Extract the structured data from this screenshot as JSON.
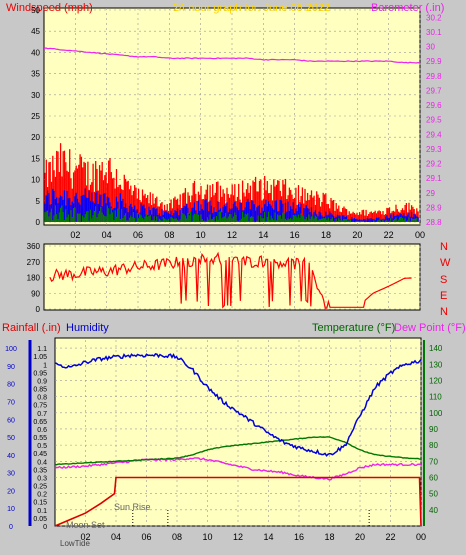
{
  "header": {
    "title": "24 hour graph for:  June 08 2022",
    "wind_label": "Windspeed (mph)",
    "baro_label": "Barometer (.in)"
  },
  "mid_panel": {
    "compass": [
      "N",
      "W",
      "S",
      "E",
      "N"
    ]
  },
  "bottom_panel": {
    "rain_label": "Rainfall (.in)",
    "hum_label": "Humidity",
    "temp_label": "Temperature (°F)",
    "dew_label": "Dew Point (°F)",
    "sun_rise_label": "Sun Rise",
    "moon_set_label": "Moon Set",
    "low_tide_label": "LowTide"
  },
  "colors": {
    "plot_bg": "#ffffc0",
    "panel_bg": "#c8c8c8",
    "wind": "#ff0000",
    "gust_blue": "#0000ff",
    "avg_green": "#008000",
    "baro": "#ee22ee",
    "humidity": "#0000dd",
    "temperature": "#007700",
    "dewpoint": "#ee22ee",
    "rain": "#dd0000",
    "title": "#ffd700"
  },
  "chart_data": [
    {
      "type": "line",
      "title": "24 hour graph for:  June 08 2022",
      "x_ticks": [
        "02",
        "04",
        "06",
        "08",
        "10",
        "12",
        "14",
        "16",
        "18",
        "20",
        "22",
        "00"
      ],
      "xlim_hours": [
        0,
        24
      ],
      "ylabel_left": "Windspeed (mph)",
      "ylim_left": [
        0,
        50
      ],
      "yticks_left": [
        0,
        5,
        10,
        15,
        20,
        25,
        30,
        35,
        40,
        45,
        50
      ],
      "ylabel_right": "Barometer (.in)",
      "ylim_right": [
        28.8,
        30.25
      ],
      "yticks_right": [
        "28.8",
        "28.9",
        "29",
        "29.1",
        "29.2",
        "29.3",
        "29.4",
        "29.5",
        "29.6",
        "29.7",
        "29.8",
        "29.9",
        "30",
        "30.1",
        "30.2"
      ],
      "series": [
        {
          "name": "Windspeed (mph)",
          "hours": [
            0,
            1,
            2,
            3,
            4,
            5,
            6,
            7,
            8,
            9,
            10,
            11,
            12,
            13,
            14,
            15,
            16,
            17,
            18,
            19,
            20,
            21,
            22,
            23,
            24
          ],
          "gust": [
            14,
            19,
            17,
            15,
            18,
            13,
            8,
            7,
            5,
            8,
            11,
            10,
            9,
            11,
            11,
            11,
            9,
            8,
            7,
            4,
            3,
            3,
            4,
            5,
            4
          ],
          "typical": [
            8,
            10,
            9,
            8,
            9,
            7,
            5,
            4,
            3,
            5,
            6,
            6,
            5,
            6,
            6,
            6,
            5,
            4,
            3,
            2,
            1,
            1,
            2,
            3,
            2
          ]
        },
        {
          "name": "Barometer (.in)",
          "hours": [
            0,
            1,
            2,
            3,
            4,
            5,
            6,
            7,
            8,
            9,
            10,
            11,
            12,
            13,
            14,
            15,
            16,
            17,
            18,
            19,
            20,
            21,
            22,
            23,
            24
          ],
          "values": [
            29.99,
            29.98,
            29.97,
            29.96,
            29.95,
            29.94,
            29.93,
            29.93,
            29.92,
            29.92,
            29.92,
            29.92,
            29.92,
            29.92,
            29.91,
            29.91,
            29.91,
            29.9,
            29.9,
            29.9,
            29.9,
            29.9,
            29.9,
            29.89,
            29.89
          ]
        }
      ]
    },
    {
      "type": "line",
      "ylabel": "Wind direction",
      "ylim": [
        0,
        360
      ],
      "yticks": [
        0,
        90,
        180,
        270,
        360
      ],
      "series": [
        {
          "name": "Wind direction",
          "hours": [
            0,
            1,
            2,
            3,
            4,
            5,
            6,
            7,
            8,
            9,
            10,
            11,
            12,
            13,
            14,
            15,
            16,
            17,
            18,
            19,
            20,
            21,
            22,
            23,
            24
          ],
          "values": [
            185,
            195,
            200,
            210,
            215,
            230,
            240,
            250,
            260,
            270,
            280,
            290,
            280,
            270,
            275,
            270,
            260,
            250,
            10,
            10,
            10,
            90,
            130,
            175,
            180
          ]
        }
      ]
    },
    {
      "type": "line",
      "ylabel_left": "Rainfall (.in)",
      "ylim_left": [
        0,
        1.15
      ],
      "yticks_left": [
        "0",
        "0.05",
        "0.1",
        "0.15",
        "0.2",
        "0.25",
        "0.3",
        "0.35",
        "0.4",
        "0.45",
        "0.5",
        "0.55",
        "0.6",
        "0.65",
        "0.7",
        "0.75",
        "0.8",
        "0.85",
        "0.9",
        "0.95",
        "1",
        "1.05",
        "1.1"
      ],
      "yticks_humidity": [
        "0",
        "10",
        "20",
        "30",
        "40",
        "50",
        "60",
        "70",
        "80",
        "90",
        "100"
      ],
      "ylabel_right": "Temperature (°F)",
      "ylim_right": [
        30,
        145
      ],
      "yticks_right": [
        "40",
        "50",
        "60",
        "70",
        "80",
        "90",
        "100",
        "110",
        "120",
        "130",
        "140"
      ],
      "series": [
        {
          "name": "Humidity",
          "hours": [
            0,
            1,
            2,
            3,
            4,
            5,
            6,
            7,
            8,
            9,
            10,
            11,
            12,
            13,
            14,
            15,
            16,
            17,
            18,
            19,
            20,
            21,
            22,
            23,
            24
          ],
          "values": [
            91,
            89,
            92,
            94,
            95,
            96,
            96,
            96,
            95,
            88,
            78,
            70,
            64,
            58,
            52,
            47,
            44,
            42,
            40,
            45,
            62,
            78,
            86,
            91,
            93
          ]
        },
        {
          "name": "Temperature (°F)",
          "hours": [
            0,
            1,
            2,
            3,
            4,
            5,
            6,
            7,
            8,
            9,
            10,
            11,
            12,
            13,
            14,
            15,
            16,
            17,
            18,
            19,
            20,
            21,
            22,
            23,
            24
          ],
          "values": [
            68,
            68.5,
            69,
            69.5,
            70,
            70.5,
            71,
            71.5,
            72,
            74,
            77,
            79,
            80,
            81,
            82,
            83,
            84,
            85,
            85,
            82,
            77,
            74,
            73,
            72,
            71.5
          ]
        },
        {
          "name": "Dew Point (°F)",
          "hours": [
            0,
            1,
            2,
            3,
            4,
            5,
            6,
            7,
            8,
            9,
            10,
            11,
            12,
            13,
            14,
            15,
            16,
            17,
            18,
            19,
            20,
            21,
            22,
            23,
            24
          ],
          "values": [
            66,
            66.5,
            67,
            68,
            69,
            70,
            71,
            71,
            71,
            72,
            71,
            69,
            67,
            65,
            64,
            63,
            61,
            60,
            59,
            62,
            66,
            68,
            68,
            68,
            68
          ]
        },
        {
          "name": "Rainfall (.in)",
          "hours": [
            0,
            1,
            2,
            3,
            3.9,
            4,
            5,
            6,
            8,
            10,
            12,
            14,
            16,
            18,
            20,
            22,
            23.9,
            24
          ],
          "values": [
            0,
            0.04,
            0.08,
            0.14,
            0.2,
            0.3,
            0.3,
            0.3,
            0.3,
            0.3,
            0.3,
            0.3,
            0.3,
            0.3,
            0.3,
            0.3,
            0.3,
            0
          ]
        }
      ]
    }
  ]
}
